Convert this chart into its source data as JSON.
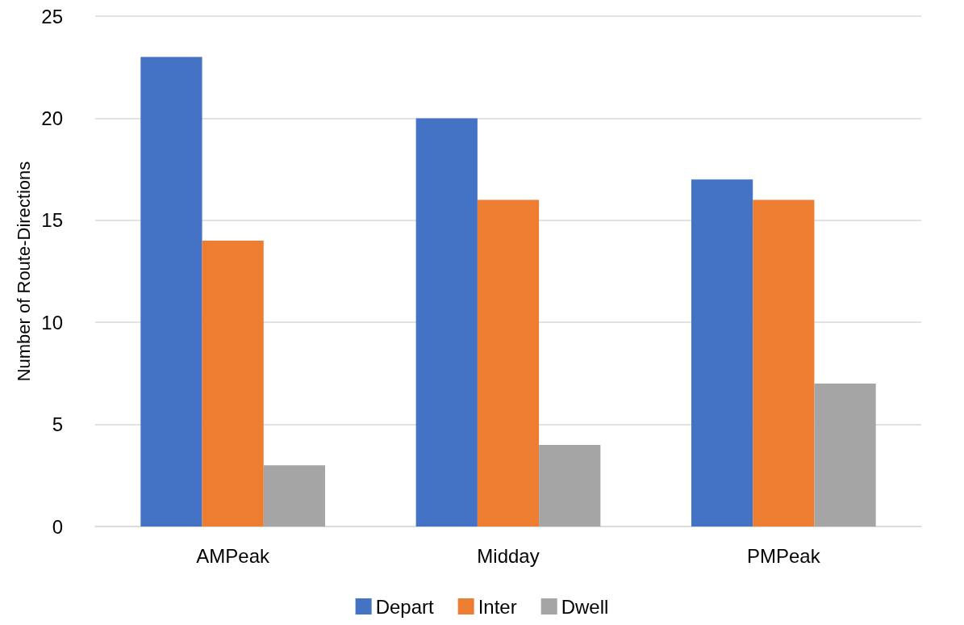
{
  "chart_data": {
    "type": "bar",
    "ylabel": "Number of Route-Directions",
    "categories": [
      "AMPeak",
      "Midday",
      "PMPeak"
    ],
    "series": [
      {
        "name": "Depart",
        "color": "#4472c4",
        "values": [
          23,
          20,
          17
        ]
      },
      {
        "name": "Inter",
        "color": "#ed7d31",
        "values": [
          14,
          16,
          16
        ]
      },
      {
        "name": "Dwell",
        "color": "#a5a5a5",
        "values": [
          3,
          4,
          7
        ]
      }
    ],
    "ylim": [
      0,
      25
    ],
    "yticks": [
      0,
      5,
      10,
      15,
      20,
      25
    ],
    "grid": "y",
    "legend": "bottom"
  }
}
